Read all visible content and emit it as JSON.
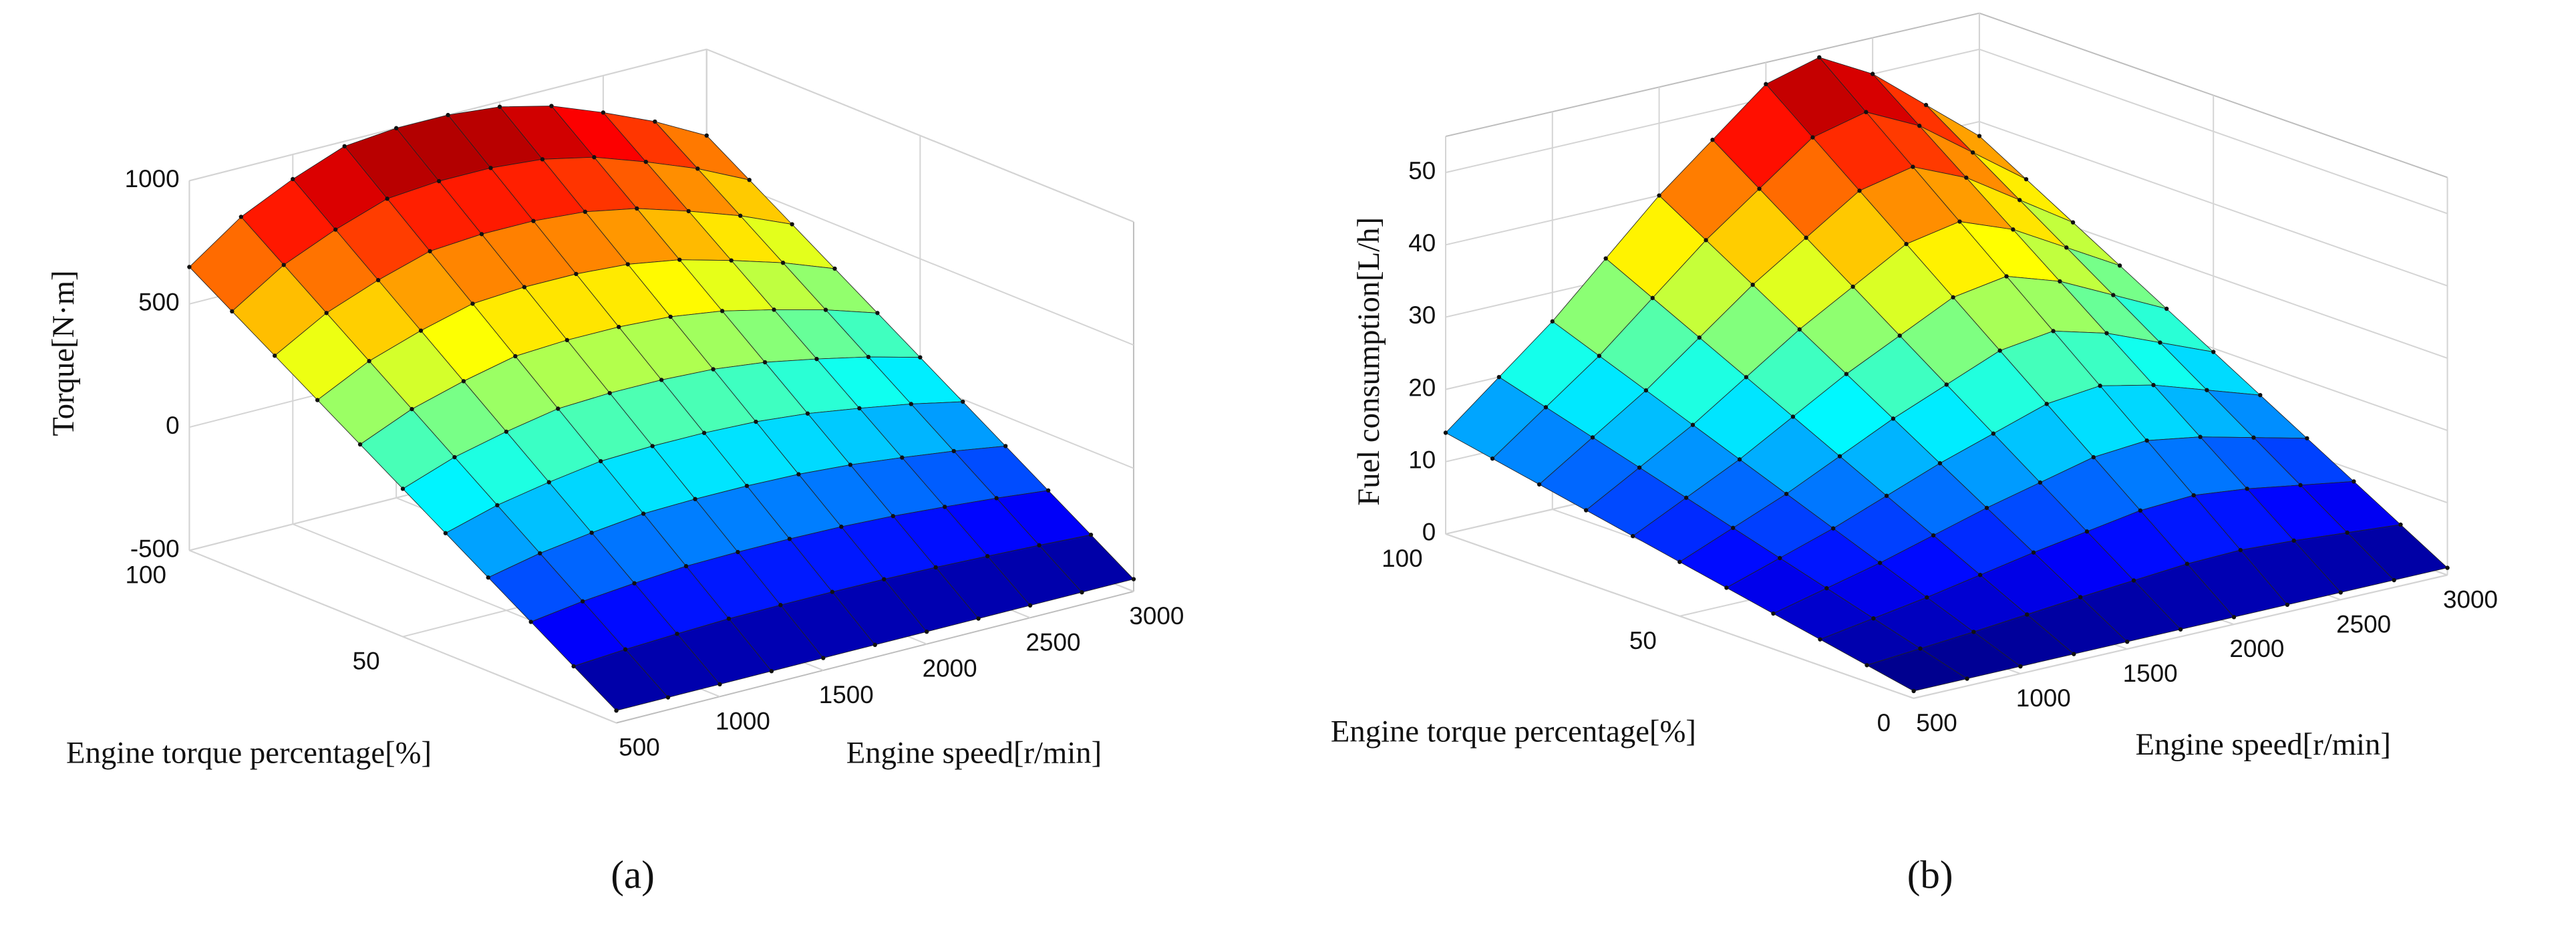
{
  "chart_data": [
    {
      "type": "surface",
      "panel_label": "(a)",
      "xlabel": "Engine speed[r/min]",
      "ylabel": "Engine torque percentage[%]",
      "zlabel": "Torque[N·m]",
      "colormap": "jet",
      "grid": true,
      "x": [
        500,
        750,
        1000,
        1250,
        1500,
        1750,
        2000,
        2250,
        2500,
        2750,
        3000
      ],
      "y": [
        0,
        10,
        20,
        30,
        40,
        50,
        60,
        70,
        80,
        90,
        100
      ],
      "z": [
        [
          -450,
          -450,
          -450,
          -450,
          -450,
          -450,
          -450,
          -450,
          -450,
          -450,
          -450
        ],
        [
          -340,
          -325,
          -315,
          -307,
          -305,
          -305,
          -307,
          -312,
          -320,
          -329,
          -340
        ],
        [
          -230,
          -200,
          -180,
          -164,
          -160,
          -160,
          -164,
          -174,
          -190,
          -208,
          -230
        ],
        [
          -120,
          -75,
          -45,
          -21,
          -15,
          -15,
          -21,
          -36,
          -60,
          -87,
          -120
        ],
        [
          -10,
          50,
          90,
          122,
          130,
          130,
          122,
          102,
          70,
          34,
          -10
        ],
        [
          100,
          175,
          225,
          265,
          275,
          275,
          265,
          240,
          200,
          155,
          100
        ],
        [
          210,
          300,
          360,
          408,
          420,
          420,
          408,
          378,
          330,
          276,
          210
        ],
        [
          320,
          425,
          495,
          551,
          565,
          565,
          551,
          516,
          460,
          397,
          320
        ],
        [
          430,
          550,
          630,
          694,
          710,
          710,
          694,
          654,
          590,
          518,
          430
        ],
        [
          540,
          675,
          765,
          837,
          855,
          855,
          837,
          792,
          720,
          639,
          540
        ],
        [
          650,
          800,
          900,
          980,
          1000,
          1000,
          980,
          930,
          850,
          760,
          650
        ]
      ],
      "xlim": [
        500,
        3000
      ],
      "xticks": [
        500,
        1000,
        1500,
        2000,
        2500,
        3000
      ],
      "ylim": [
        0,
        100
      ],
      "yticks": [
        50,
        100
      ],
      "zlim": [
        -500,
        1000
      ],
      "zticks": [
        -500,
        0,
        500,
        1000
      ]
    },
    {
      "type": "surface",
      "panel_label": "(b)",
      "xlabel": "Engine speed[r/min]",
      "ylabel": "Engine torque percentage[%]",
      "zlabel": "Fuel consumption[L/h]",
      "colormap": "jet",
      "grid": true,
      "x": [
        500,
        750,
        1000,
        1250,
        1500,
        1750,
        2000,
        2250,
        2500,
        2750,
        3000
      ],
      "y": [
        0,
        10,
        20,
        30,
        40,
        50,
        60,
        70,
        80,
        90,
        100
      ],
      "z": [
        [
          1,
          1,
          1,
          1,
          1,
          1,
          1,
          1,
          1,
          1,
          1
        ],
        [
          2.3,
          2.9,
          3.5,
          4.2,
          4.9,
          5.5,
          6.1,
          6.3,
          5.9,
          5.3,
          4.7
        ],
        [
          3.6,
          4.8,
          6,
          7.4,
          8.8,
          10,
          11.2,
          11.6,
          10.8,
          9.6,
          8.4
        ],
        [
          4.9,
          6.7,
          8.5,
          10.6,
          12.7,
          14.5,
          16.3,
          16.9,
          15.7,
          13.9,
          12.1
        ],
        [
          6.2,
          8.6,
          11,
          13.8,
          16.6,
          19,
          21.4,
          22.2,
          20.6,
          18.2,
          15.8
        ],
        [
          7.5,
          10.5,
          13.5,
          17,
          20.5,
          23.5,
          26.5,
          27.5,
          25.5,
          22.5,
          19.5
        ],
        [
          8.8,
          12.4,
          16,
          20.2,
          24.4,
          28,
          31.6,
          32.8,
          30.4,
          26.8,
          23.2
        ],
        [
          10.1,
          14.3,
          18.5,
          23.4,
          28.3,
          32.5,
          36.7,
          38.1,
          35.3,
          31.1,
          26.9
        ],
        [
          11.4,
          16.2,
          21,
          26.6,
          32.2,
          37,
          41.8,
          43.4,
          40.2,
          35.4,
          30.6
        ],
        [
          12.7,
          18.1,
          23.5,
          29.8,
          36.1,
          41.5,
          46.9,
          48.7,
          45.1,
          39.7,
          34.3
        ],
        [
          14,
          20,
          26,
          33,
          40,
          46,
          52,
          54,
          50,
          44,
          38
        ]
      ],
      "xlim": [
        500,
        3000
      ],
      "xticks": [
        500,
        1000,
        1500,
        2000,
        2500,
        3000
      ],
      "ylim": [
        0,
        100
      ],
      "yticks": [
        0,
        50,
        100
      ],
      "zlim": [
        0,
        55
      ],
      "zticks": [
        0,
        10,
        20,
        30,
        40,
        50
      ]
    }
  ]
}
